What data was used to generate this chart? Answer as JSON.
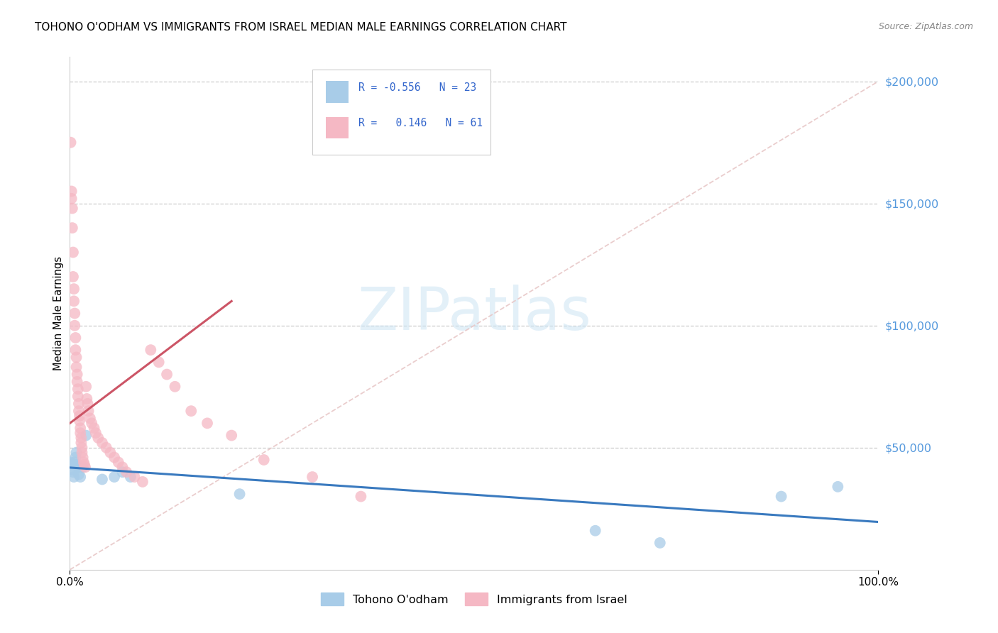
{
  "title": "TOHONO O'ODHAM VS IMMIGRANTS FROM ISRAEL MEDIAN MALE EARNINGS CORRELATION CHART",
  "source": "Source: ZipAtlas.com",
  "ylabel": "Median Male Earnings",
  "legend_label1": "Tohono O'odham",
  "legend_label2": "Immigrants from Israel",
  "r1": "-0.556",
  "n1": "23",
  "r2": "0.146",
  "n2": "61",
  "color_blue": "#a8cce8",
  "color_pink": "#f5b8c4",
  "color_blue_line": "#3a7abf",
  "color_pink_line": "#cc5566",
  "color_dash": "#e8c8c8",
  "blue_x": [
    0.001,
    0.002,
    0.003,
    0.004,
    0.005,
    0.006,
    0.007,
    0.008,
    0.009,
    0.01,
    0.011,
    0.013,
    0.016,
    0.02,
    0.04,
    0.055,
    0.065,
    0.075,
    0.21,
    0.65,
    0.73,
    0.88,
    0.95
  ],
  "blue_y": [
    44000,
    43000,
    41000,
    40000,
    38000,
    44000,
    46000,
    48000,
    43000,
    42000,
    39000,
    38000,
    42000,
    55000,
    37000,
    38000,
    40000,
    38000,
    31000,
    16000,
    11000,
    30000,
    34000
  ],
  "pink_x": [
    0.001,
    0.002,
    0.002,
    0.003,
    0.003,
    0.004,
    0.004,
    0.005,
    0.005,
    0.006,
    0.006,
    0.007,
    0.007,
    0.008,
    0.008,
    0.009,
    0.009,
    0.01,
    0.01,
    0.011,
    0.011,
    0.012,
    0.012,
    0.013,
    0.013,
    0.014,
    0.014,
    0.015,
    0.015,
    0.016,
    0.017,
    0.018,
    0.019,
    0.02,
    0.021,
    0.022,
    0.023,
    0.025,
    0.027,
    0.03,
    0.032,
    0.035,
    0.04,
    0.045,
    0.05,
    0.055,
    0.06,
    0.065,
    0.07,
    0.08,
    0.09,
    0.1,
    0.11,
    0.12,
    0.13,
    0.15,
    0.17,
    0.2,
    0.24,
    0.3,
    0.36
  ],
  "pink_y": [
    175000,
    155000,
    152000,
    148000,
    140000,
    130000,
    120000,
    115000,
    110000,
    105000,
    100000,
    95000,
    90000,
    87000,
    83000,
    80000,
    77000,
    74000,
    71000,
    68000,
    65000,
    63000,
    61000,
    58000,
    56000,
    54000,
    52000,
    50000,
    48000,
    46000,
    44000,
    43000,
    42000,
    75000,
    70000,
    68000,
    65000,
    62000,
    60000,
    58000,
    56000,
    54000,
    52000,
    50000,
    48000,
    46000,
    44000,
    42000,
    40000,
    38000,
    36000,
    90000,
    85000,
    80000,
    75000,
    65000,
    60000,
    55000,
    45000,
    38000,
    30000
  ],
  "xlim": [
    0.0,
    1.0
  ],
  "ylim": [
    0,
    210000
  ],
  "yticks": [
    50000,
    100000,
    150000,
    200000
  ],
  "ytick_labels": [
    "$50,000",
    "$100,000",
    "$150,000",
    "$200,000"
  ],
  "title_fontsize": 11,
  "source_fontsize": 9,
  "tick_color": "#5599dd",
  "background_color": "#ffffff"
}
